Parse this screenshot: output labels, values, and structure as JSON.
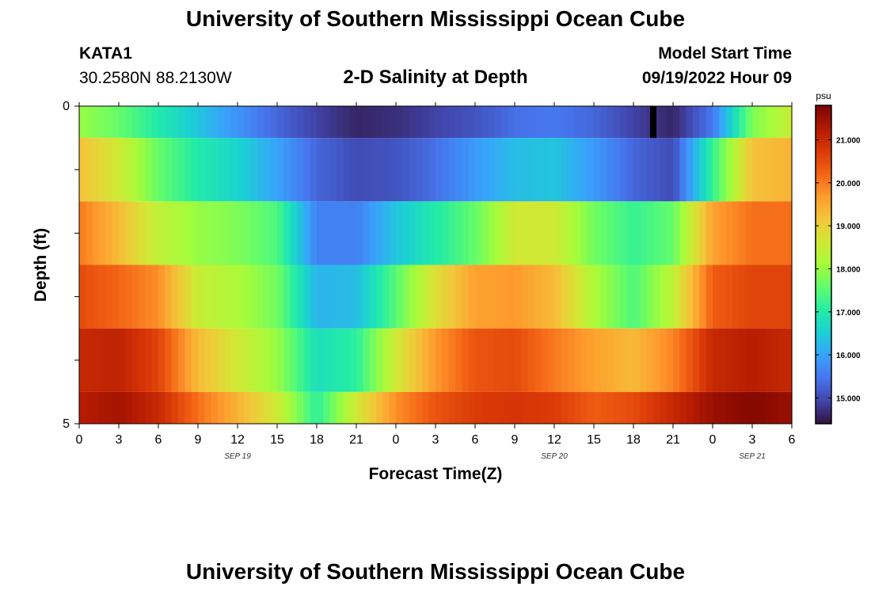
{
  "page": {
    "title": "University of Southern Mississippi Ocean Cube",
    "station_id": "KATA1",
    "coordinates": "30.2580N  88.2130W",
    "plot_title": "2-D Salinity at Depth",
    "model_start_label": "Model Start Time",
    "model_start_value": "09/19/2022 Hour 09",
    "next_title": "University of Southern Mississippi Ocean Cube"
  },
  "colors": {
    "scale": [
      "#30123b",
      "#4145ab",
      "#4675ed",
      "#39a2fc",
      "#1bcfd4",
      "#24eca6",
      "#61fc6c",
      "#a4fc3b",
      "#d1e834",
      "#f3c63a",
      "#fe9b2d",
      "#f36315",
      "#d93806",
      "#b11901",
      "#7a0402"
    ],
    "marker": "#000000"
  },
  "chart_data": {
    "type": "heatmap",
    "xlabel": "Forecast Time(Z)",
    "ylabel": "Depth (ft)",
    "y_tick_labels": [
      "0",
      "5"
    ],
    "ylim": [
      0,
      5
    ],
    "x_hours": [
      0,
      3,
      6,
      9,
      12,
      15,
      18,
      21,
      24,
      27,
      30,
      33,
      36,
      39,
      42,
      45,
      48,
      51,
      54
    ],
    "x_tick_labels": [
      "0",
      "3",
      "6",
      "9",
      "12",
      "15",
      "18",
      "21",
      "0",
      "3",
      "6",
      "9",
      "12",
      "15",
      "18",
      "21",
      "0",
      "3",
      "6"
    ],
    "date_labels": [
      {
        "label": "SEP 19",
        "hour": 12
      },
      {
        "label": "SEP 20",
        "hour": 36
      },
      {
        "label": "SEP 21",
        "hour": 51
      }
    ],
    "depth_layers": [
      0,
      1,
      2,
      3,
      4,
      5
    ],
    "colorbar": {
      "unit": "psu",
      "range": [
        14.4,
        21.8
      ],
      "tick_labels": [
        "15.000",
        "16.000",
        "17.000",
        "18.000",
        "19.000",
        "20.000",
        "21.000"
      ],
      "tick_values": [
        15,
        16,
        17,
        18,
        19,
        20,
        21
      ]
    },
    "marker_hour": 43.5,
    "rows": [
      {
        "depth": 0,
        "hours": [
          0,
          3,
          6,
          9,
          12,
          15,
          18,
          21,
          24,
          27,
          30,
          33,
          36,
          39,
          42,
          45,
          48,
          51,
          54
        ],
        "values": [
          18.0,
          17.6,
          17.0,
          16.4,
          15.8,
          15.3,
          14.9,
          14.6,
          14.7,
          14.9,
          15.1,
          15.4,
          15.5,
          15.3,
          14.9,
          14.6,
          15.5,
          17.8,
          18.5
        ]
      },
      {
        "depth": 1,
        "hours": [
          0,
          3,
          6,
          9,
          12,
          15,
          18,
          21,
          24,
          27,
          30,
          33,
          36,
          39,
          42,
          45,
          48,
          51,
          54
        ],
        "values": [
          19.2,
          18.6,
          17.6,
          17.0,
          16.6,
          16.0,
          15.3,
          15.0,
          15.1,
          15.4,
          15.9,
          16.3,
          16.4,
          15.9,
          15.3,
          15.0,
          17.2,
          19.2,
          19.4
        ]
      },
      {
        "depth": 2,
        "hours": [
          0,
          3,
          6,
          9,
          12,
          15,
          18,
          21,
          24,
          27,
          30,
          33,
          36,
          39,
          42,
          45,
          48,
          51,
          54
        ],
        "values": [
          20.0,
          19.3,
          18.4,
          18.0,
          17.8,
          17.4,
          15.6,
          15.6,
          16.4,
          17.0,
          17.6,
          18.6,
          18.6,
          17.7,
          17.2,
          17.6,
          19.6,
          20.1,
          20.1
        ]
      },
      {
        "depth": 3,
        "hours": [
          0,
          3,
          6,
          9,
          12,
          15,
          18,
          21,
          24,
          27,
          30,
          33,
          36,
          39,
          42,
          45,
          48,
          51,
          54
        ],
        "values": [
          20.5,
          20.2,
          19.8,
          18.5,
          18.2,
          17.7,
          16.2,
          16.3,
          17.5,
          18.8,
          19.6,
          19.7,
          19.3,
          18.2,
          17.4,
          18.4,
          20.3,
          20.6,
          20.6
        ]
      },
      {
        "depth": 4,
        "hours": [
          0,
          3,
          6,
          9,
          12,
          15,
          18,
          21,
          24,
          27,
          30,
          33,
          36,
          39,
          42,
          45,
          48,
          51,
          54
        ],
        "values": [
          21.0,
          21.1,
          20.6,
          19.3,
          18.6,
          18.0,
          16.8,
          17.1,
          18.6,
          19.7,
          20.4,
          20.5,
          20.0,
          19.6,
          19.3,
          19.9,
          21.0,
          21.2,
          21.0
        ]
      },
      {
        "depth": 5,
        "hours": [
          0,
          3,
          6,
          9,
          12,
          15,
          18,
          21,
          24,
          27,
          30,
          33,
          36,
          39,
          42,
          45,
          48,
          51,
          54
        ],
        "values": [
          21.2,
          21.4,
          21.0,
          20.1,
          19.4,
          18.6,
          17.1,
          18.6,
          19.8,
          20.4,
          20.7,
          20.8,
          20.7,
          20.3,
          20.5,
          21.0,
          21.5,
          21.7,
          21.5
        ]
      }
    ]
  }
}
